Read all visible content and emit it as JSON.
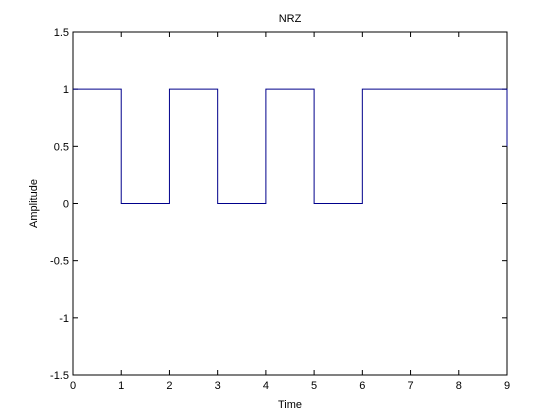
{
  "chart_data": {
    "type": "line",
    "title": "NRZ",
    "xlabel": "Time",
    "ylabel": "Amplitude",
    "xlim": [
      0,
      9
    ],
    "ylim": [
      -1.5,
      1.5
    ],
    "xticks": [
      0,
      1,
      2,
      3,
      4,
      5,
      6,
      7,
      8,
      9
    ],
    "yticks": [
      -1.5,
      -1,
      -0.5,
      0,
      0.5,
      1,
      1.5
    ],
    "xtick_labels": [
      "0",
      "1",
      "2",
      "3",
      "4",
      "5",
      "6",
      "7",
      "8",
      "9"
    ],
    "ytick_labels": [
      "-1.5",
      "-1",
      "-0.5",
      "0",
      "0.5",
      "1",
      "1.5"
    ],
    "grid": false,
    "series": [
      {
        "color": "#00008b",
        "x": [
          0,
          1,
          1,
          2,
          2,
          3,
          3,
          4,
          4,
          5,
          5,
          6,
          6,
          9,
          9
        ],
        "y": [
          1,
          1,
          0,
          0,
          1,
          1,
          0,
          0,
          1,
          1,
          0,
          0,
          1,
          1,
          0.5
        ]
      }
    ]
  }
}
